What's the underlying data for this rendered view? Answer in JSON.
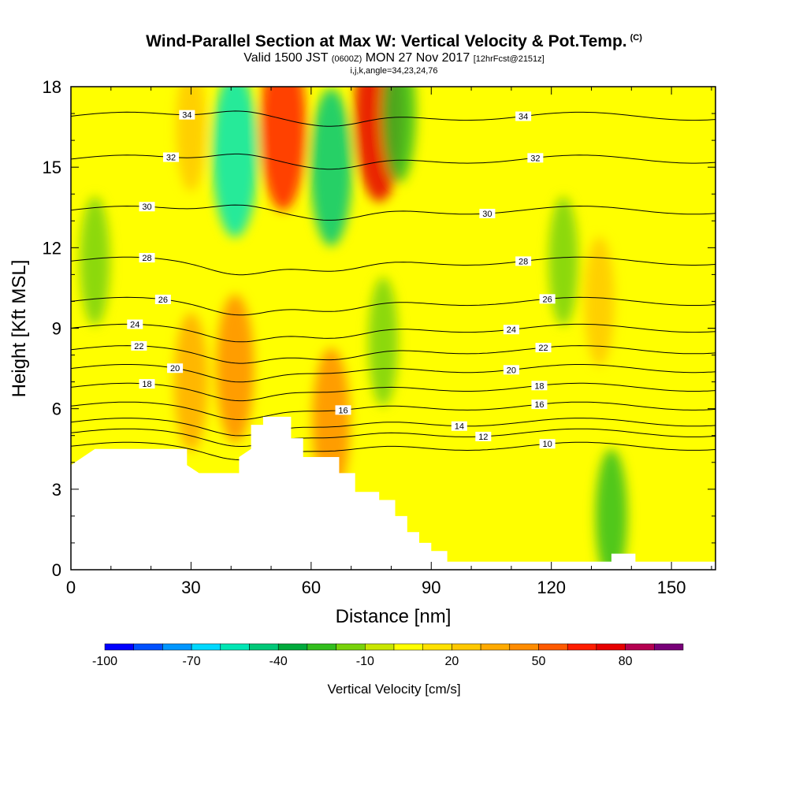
{
  "header": {
    "title": "Wind-Parallel Section at Max W: Vertical Velocity & Pot.Temp.",
    "copyright": "(C)",
    "valid_prefix": "Valid 1500 JST",
    "valid_utc": "(0600Z)",
    "valid_date": "MON 27 Nov 2017",
    "forecast_info": "[12hrFcst@2151z]",
    "indices": "i,j,k,angle=34,23,24,76"
  },
  "chart_data": {
    "type": "heatmap",
    "xlabel": "Distance [nm]",
    "ylabel": "Height [Kft MSL]",
    "xlim": [
      0,
      161
    ],
    "ylim": [
      0,
      18
    ],
    "x_ticks": [
      "0",
      "30",
      "60",
      "90",
      "120",
      "150"
    ],
    "y_ticks": [
      "0",
      "3",
      "6",
      "9",
      "12",
      "15",
      "18"
    ],
    "colorbar": {
      "label": "Vertical Velocity [cm/s]",
      "min": -100,
      "max": 100,
      "step": 10,
      "tick_labels": [
        "-100",
        "-70",
        "-40",
        "-10",
        "20",
        "50",
        "80"
      ],
      "colors": [
        "#0000ff",
        "#0050ff",
        "#0096ff",
        "#00d8ff",
        "#00e6b4",
        "#00c878",
        "#00aa3c",
        "#32be1e",
        "#78d20a",
        "#c8e600",
        "#ffff00",
        "#ffe100",
        "#ffc800",
        "#ffaa00",
        "#ff8c00",
        "#ff5a00",
        "#ff1e00",
        "#e60000",
        "#b40050",
        "#780078"
      ]
    },
    "terrain_kft": [
      [
        0,
        3.9
      ],
      [
        3,
        4.2
      ],
      [
        6,
        4.5
      ],
      [
        29,
        4.5
      ],
      [
        29,
        3.9
      ],
      [
        32,
        3.6
      ],
      [
        42,
        3.6
      ],
      [
        42,
        4.2
      ],
      [
        45,
        4.5
      ],
      [
        45,
        5.4
      ],
      [
        48,
        5.4
      ],
      [
        48,
        5.7
      ],
      [
        55,
        5.7
      ],
      [
        55,
        4.9
      ],
      [
        58,
        4.9
      ],
      [
        58,
        4.2
      ],
      [
        67,
        4.2
      ],
      [
        67,
        3.6
      ],
      [
        71,
        3.6
      ],
      [
        71,
        2.9
      ],
      [
        77,
        2.9
      ],
      [
        77,
        2.6
      ],
      [
        81,
        2.6
      ],
      [
        81,
        2.0
      ],
      [
        84,
        2.0
      ],
      [
        84,
        1.4
      ],
      [
        87,
        1.4
      ],
      [
        87,
        1.0
      ],
      [
        90,
        1.0
      ],
      [
        90,
        0.7
      ],
      [
        94,
        0.7
      ],
      [
        94,
        0.3
      ],
      [
        135,
        0.3
      ],
      [
        135,
        0.6
      ],
      [
        141,
        0.6
      ],
      [
        141,
        0.3
      ],
      [
        161,
        0.3
      ]
    ],
    "theta_contours": [
      {
        "level": "10",
        "base": 4.6,
        "label_x": 119
      },
      {
        "level": "12",
        "base": 5.1,
        "label_x": 103
      },
      {
        "level": "14",
        "base": 5.5,
        "label_x": 97
      },
      {
        "level": "16",
        "base": 6.1,
        "label_x": 117,
        "label2_x": 68
      },
      {
        "level": "18",
        "base": 6.8,
        "label_x": 117,
        "label2_x": 19
      },
      {
        "level": "20",
        "base": 7.5,
        "label_x": 110,
        "label2_x": 26
      },
      {
        "level": "22",
        "base": 8.2,
        "label_x": 118,
        "label2_x": 17
      },
      {
        "level": "24",
        "base": 9.0,
        "label_x": 110,
        "label2_x": 16
      },
      {
        "level": "26",
        "base": 10.0,
        "label_x": 119,
        "label2_x": 23
      },
      {
        "level": "28",
        "base": 11.5,
        "label_x": 113,
        "label2_x": 19
      },
      {
        "level": "30",
        "base": 13.4,
        "label_x": 104,
        "label2_x": 19
      },
      {
        "level": "32",
        "base": 15.3,
        "label_x": 116,
        "label2_x": 25
      },
      {
        "level": "34",
        "base": 16.9,
        "label_x": 113,
        "label2_x": 29
      }
    ],
    "w_features": [
      {
        "x": 6,
        "y": 11.5,
        "w_cm_s": -20
      },
      {
        "x": 30,
        "y": 16.5,
        "w_cm_s": 20
      },
      {
        "x": 41,
        "y": 15.5,
        "w_cm_s": -60
      },
      {
        "x": 53,
        "y": 16.5,
        "w_cm_s": 60
      },
      {
        "x": 65,
        "y": 15.0,
        "w_cm_s": -50
      },
      {
        "x": 77,
        "y": 17.0,
        "w_cm_s": 70
      },
      {
        "x": 82,
        "y": 17.0,
        "w_cm_s": -30
      },
      {
        "x": 41,
        "y": 7.5,
        "w_cm_s": 40
      },
      {
        "x": 65,
        "y": 5.5,
        "w_cm_s": 40
      },
      {
        "x": 30,
        "y": 7.0,
        "w_cm_s": 30
      },
      {
        "x": 78,
        "y": 8.5,
        "w_cm_s": -20
      },
      {
        "x": 123,
        "y": 11.5,
        "w_cm_s": -20
      },
      {
        "x": 135,
        "y": 2.0,
        "w_cm_s": -25
      },
      {
        "x": 132,
        "y": 10.0,
        "w_cm_s": 20
      }
    ]
  }
}
